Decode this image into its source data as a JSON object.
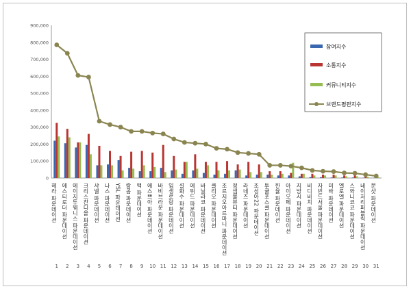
{
  "chart_data": {
    "type": "bar",
    "categories": [
      "헤라 파운데이션",
      "에스티로더 파운데이션",
      "에이지투웨니스 파운데이션",
      "크리스찬디올 파운데이션",
      "샤넬 파운데이션",
      "나스 파운데이션",
      "YSL 파운데이션",
      "랑콤 파운데이션",
      "맥 파운데이션",
      "에스쁘아 파운데이션",
      "바비브라운 파운데이션",
      "입생로랑 파운데이션",
      "설화수 파운데이션",
      "에뛰드 파운데이션",
      "바닐라코 파운데이션",
      "클리오 파운데이션",
      "조르지오아르마니 파운데이션",
      "정샘물뷰티 파운데이션",
      "라네즈 파운데이션",
      "조성아22 파운데이션",
      "투쿨포스쿨 파운데이션",
      "한율 파운데이션",
      "아이오페 파운데이션",
      "지방시 파운데이션",
      "비디비치 파운데이션",
      "자빈드서울 파운데이션",
      "미바 파운데이션",
      "엘로엘 파운데이션",
      "스와니코코 파운데이션",
      "네이처리퍼블릭 파운데이션",
      "문샷 파운데이션"
    ],
    "x": [
      "1",
      "2",
      "3",
      "4",
      "5",
      "6",
      "7",
      "8",
      "9",
      "10",
      "11",
      "12",
      "13",
      "14",
      "15",
      "16",
      "17",
      "18",
      "19",
      "20",
      "21",
      "22",
      "23",
      "24",
      "25",
      "26",
      "27",
      "28",
      "29",
      "30",
      "31"
    ],
    "series": [
      {
        "name": "참여지수",
        "color": "#3a68b0",
        "values": [
          220000,
          205000,
          180000,
          195000,
          75000,
          80000,
          105000,
          60000,
          40000,
          40000,
          60000,
          45000,
          25000,
          45000,
          30000,
          20000,
          25000,
          45000,
          15000,
          20000,
          20000,
          15000,
          15000,
          10000,
          5000,
          5000,
          3000,
          3000,
          3000,
          2000,
          2000
        ]
      },
      {
        "name": "소통지수",
        "color": "#b83532",
        "values": [
          325000,
          290000,
          210000,
          260000,
          190000,
          160000,
          130000,
          155000,
          160000,
          150000,
          195000,
          130000,
          95000,
          140000,
          95000,
          95000,
          100000,
          80000,
          95000,
          80000,
          40000,
          40000,
          30000,
          25000,
          25000,
          20000,
          20000,
          15000,
          15000,
          10000,
          5000
        ]
      },
      {
        "name": "커뮤니티지수",
        "color": "#96bd52",
        "values": [
          245000,
          240000,
          210000,
          140000,
          75000,
          75000,
          45000,
          55000,
          75000,
          65000,
          35000,
          50000,
          95000,
          55000,
          75000,
          45000,
          45000,
          50000,
          35000,
          35000,
          20000,
          25000,
          90000,
          25000,
          15000,
          15000,
          15000,
          10000,
          10000,
          8000,
          5000
        ]
      },
      {
        "name": "브랜드평판지수",
        "color": "#8a8550",
        "values": [
          785000,
          735000,
          605000,
          595000,
          335000,
          315000,
          300000,
          275000,
          275000,
          265000,
          260000,
          230000,
          210000,
          205000,
          200000,
          175000,
          170000,
          150000,
          145000,
          140000,
          75000,
          75000,
          70000,
          60000,
          45000,
          40000,
          38000,
          30000,
          28000,
          20000,
          12000
        ]
      }
    ],
    "ylim": [
      0,
      900000
    ],
    "yticks": [
      "0",
      "100,000",
      "200,000",
      "300,000",
      "400,000",
      "500,000",
      "600,000",
      "700,000",
      "800,000",
      "900,000"
    ],
    "grid": false,
    "legend_position": "top-right"
  }
}
